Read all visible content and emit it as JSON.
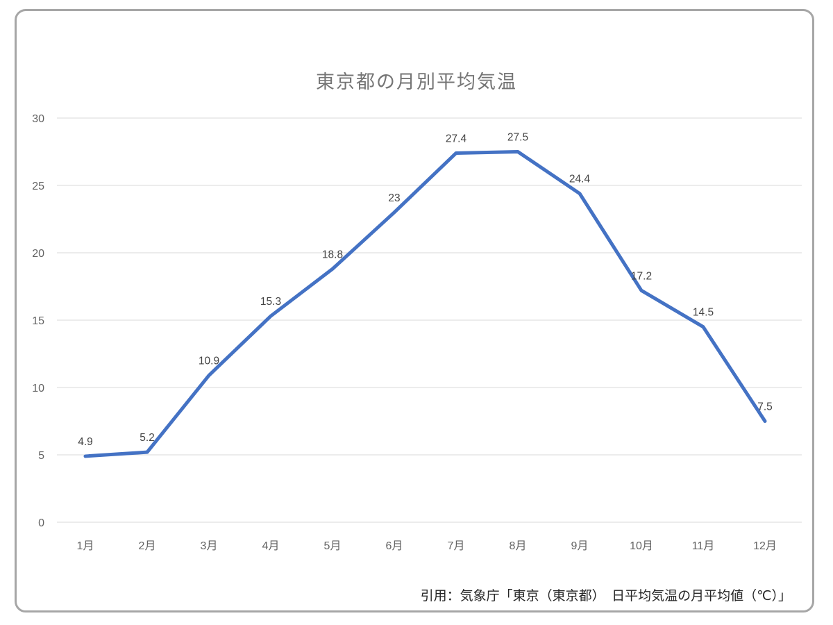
{
  "chart_data": {
    "type": "line",
    "title": "東京都の月別平均気温",
    "categories": [
      "1月",
      "2月",
      "3月",
      "4月",
      "5月",
      "6月",
      "7月",
      "8月",
      "9月",
      "10月",
      "11月",
      "12月"
    ],
    "values": [
      4.9,
      5.2,
      10.9,
      15.3,
      18.8,
      23,
      27.4,
      27.5,
      24.4,
      17.2,
      14.5,
      7.5
    ],
    "data_labels": [
      "4.9",
      "5.2",
      "10.9",
      "15.3",
      "18.8",
      "23",
      "27.4",
      "27.5",
      "24.4",
      "17.2",
      "14.5",
      "7.5"
    ],
    "xlabel": "",
    "ylabel": "",
    "ylim": [
      0,
      30
    ],
    "yticks": [
      0,
      5,
      10,
      15,
      20,
      25,
      30
    ],
    "grid": true,
    "legend": "none",
    "line_color": "#4472C4",
    "gridline_color": "#d9d9d9",
    "axis_label_color": "#636363",
    "data_label_color": "#444444",
    "title_color": "#757575"
  },
  "footer": {
    "citation": "引用：気象庁「東京（東京都）　日平均気温の月平均値（℃）」"
  },
  "frame": {
    "border_color": "#a6a6a6"
  }
}
